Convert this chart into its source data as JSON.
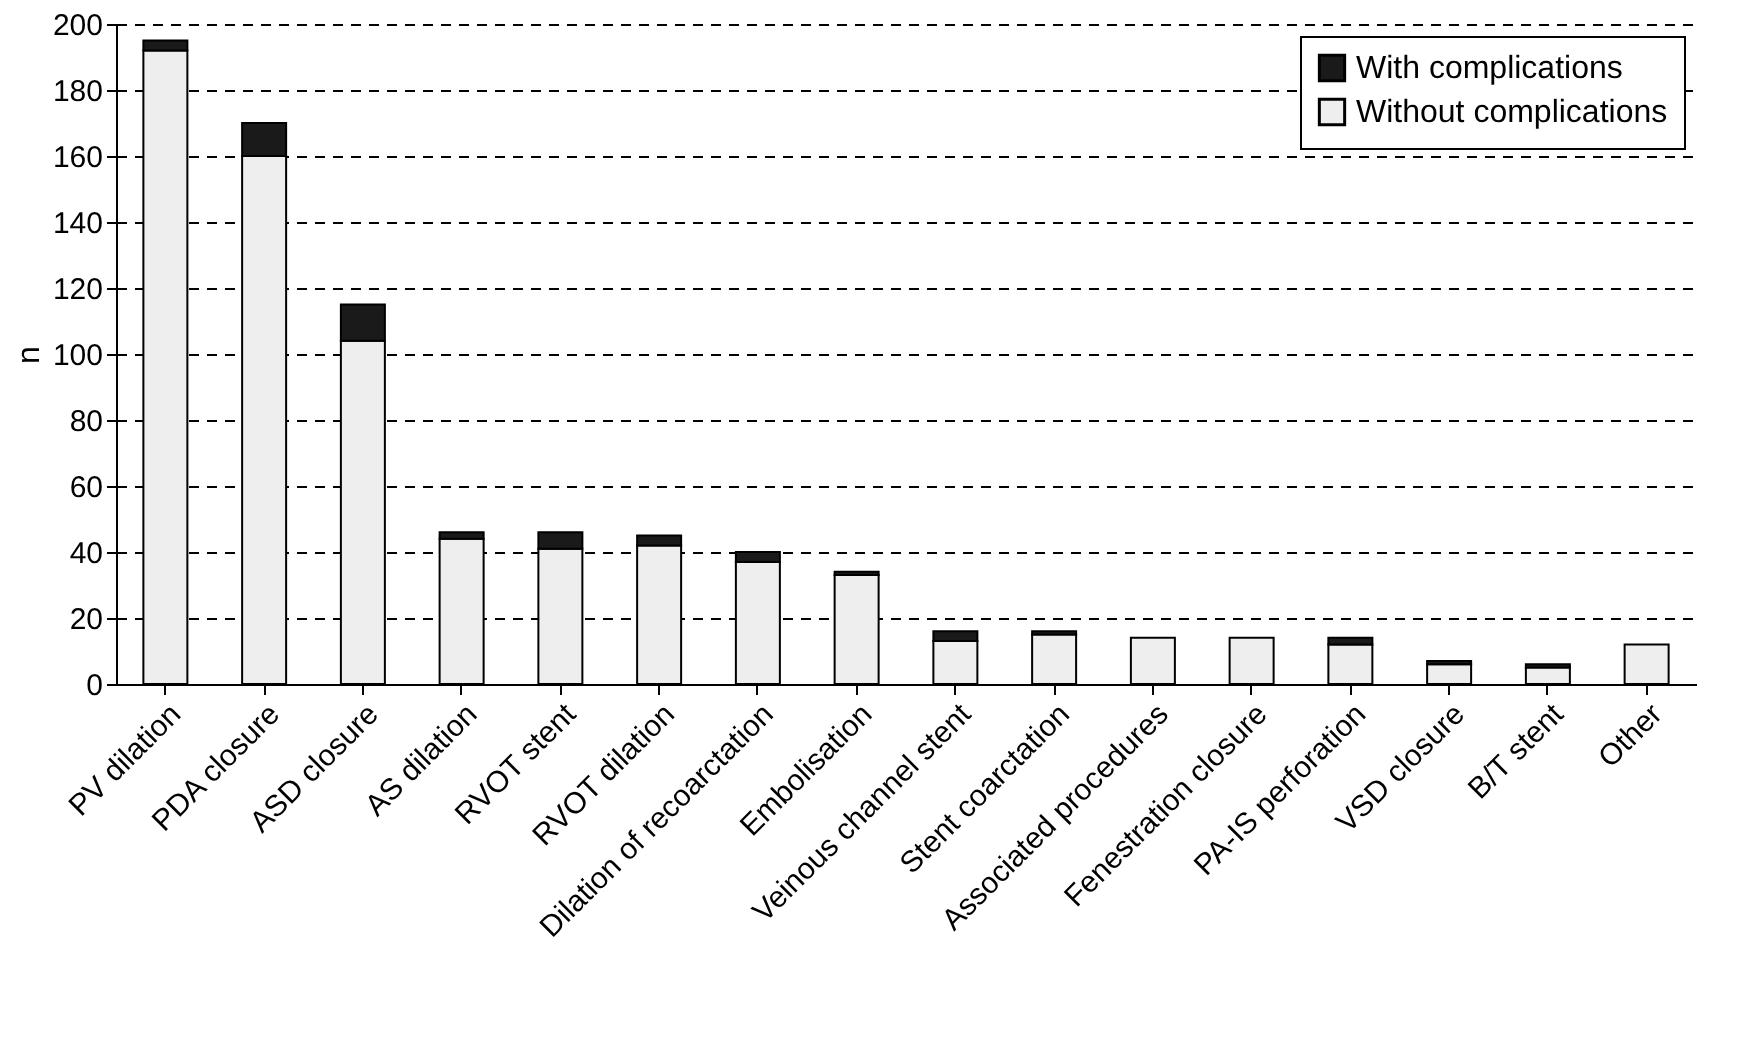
{
  "chart_data": {
    "type": "bar",
    "stacked": true,
    "ylabel": "n",
    "categories": [
      "PV dilation",
      "PDA closure",
      "ASD closure",
      "AS dilation",
      "RVOT stent",
      "RVOT dilation",
      "Dilation of recoarctation",
      "Embolisation",
      "Veinous channel stent",
      "Stent coarctation",
      "Associated procedures",
      "Fenestration closure",
      "PA-IS perforation",
      "VSD closure",
      "B/T stent",
      "Other"
    ],
    "series": [
      {
        "name": "Without complications",
        "color": "#eeeeee",
        "values": [
          192,
          160,
          104,
          44,
          41,
          42,
          37,
          33,
          13,
          15,
          14,
          14,
          12,
          6,
          5,
          12
        ]
      },
      {
        "name": "With complications",
        "color": "#1a1a1a",
        "values": [
          3,
          10,
          11,
          2,
          5,
          3,
          3,
          1,
          3,
          1,
          0,
          0,
          2,
          1,
          1,
          0
        ]
      }
    ],
    "ylim": [
      0,
      200
    ],
    "yticks": [
      0,
      20,
      40,
      60,
      80,
      100,
      120,
      140,
      160,
      180,
      200
    ],
    "grid": "y",
    "legend": "top right"
  }
}
